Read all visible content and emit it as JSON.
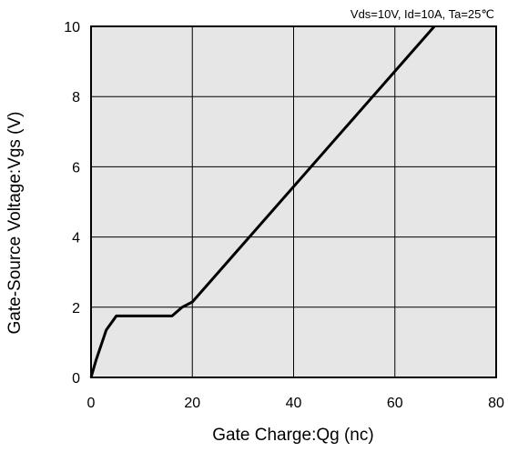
{
  "chart_data": {
    "type": "line",
    "annotation": "Vds=10V, Id=10A, Ta=25℃",
    "xlabel": "Gate Charge:Qg  (nc)",
    "ylabel": "Gate-Source Voltage:Vgs  (V)",
    "xlim": [
      0,
      80
    ],
    "ylim": [
      0,
      10
    ],
    "xticks": [
      0,
      20,
      40,
      60,
      80
    ],
    "yticks": [
      0,
      2,
      4,
      6,
      8,
      10
    ],
    "grid": true,
    "background": "#e6e6e6",
    "line_color": "#000000",
    "series": [
      {
        "x": [
          0,
          1,
          3,
          5,
          16,
          18,
          20,
          67.8
        ],
        "y": [
          0,
          0.5,
          1.35,
          1.75,
          1.75,
          2.0,
          2.15,
          10
        ]
      }
    ]
  }
}
